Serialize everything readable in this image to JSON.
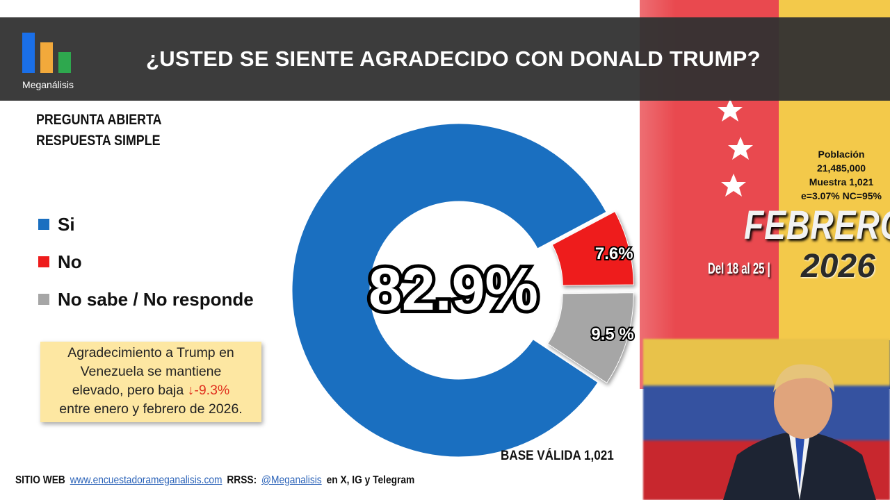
{
  "header": {
    "logo_text": "Meganálisis",
    "title": "¿USTED SE SIENTE AGRADECIDO CON DONALD TRUMP?"
  },
  "question_type": [
    "PREGUNTA  ABIERTA",
    "RESPUESTA SIMPLE"
  ],
  "note": {
    "line1": "Agradecimiento a Trump en",
    "line2": "Venezuela se mantiene",
    "line3": "elevado, pero baja ",
    "change": "↓-9.3%",
    "line4": "entre enero y febrero de 2026."
  },
  "meta": {
    "poblacion_label": "Población",
    "poblacion": "21,485,000",
    "muestra": "Muestra 1,021",
    "error": "e=3.07%  NC=95%",
    "month": "FEBRERO",
    "dates": "Del 18 al 25 |",
    "year": "2026"
  },
  "base": "BASE VÁLIDA 1,021",
  "footer": {
    "site_label": "SITIO WEB",
    "site": "www.encuestadorameganalisis.com",
    "rrss_label": "RRSS:",
    "handle": "@Meganalisis",
    "suffix": "en X, IG y Telegram"
  },
  "chart_data": {
    "type": "pie",
    "title": "¿USTED SE SIENTE AGRADECIDO CON DONALD TRUMP?",
    "categories": [
      "Si",
      "No",
      "No sabe / No responde"
    ],
    "values": [
      82.9,
      7.6,
      9.5
    ],
    "labels": [
      "82.9%",
      "7.6%",
      "9.5 %"
    ],
    "colors": [
      "#1a6fc0",
      "#ee1c1c",
      "#a6a6a6"
    ],
    "donut": true,
    "legend": "left"
  }
}
